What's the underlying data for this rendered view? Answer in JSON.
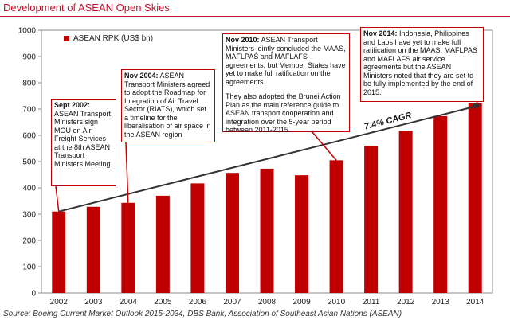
{
  "header": {
    "title": "Development of ASEAN Open Skies"
  },
  "source": "Source: Boeing Current Market Outlook 2015-2034, DBS Bank, Association of Southeast Asian Nations (ASEAN)",
  "colors": {
    "bar": "#c00000",
    "title": "#c8102e",
    "trend": "#333333"
  },
  "annotations": [
    {
      "head": "Sept 2002:",
      "body": "ASEAN Transport Ministers sign MOU on Air Freight Services at the 8th ASEAN Transport Ministers Meeting"
    },
    {
      "head": "Nov 2004:",
      "body": "ASEAN Transport Ministers agreed to adopt the Roadmap for Integration of Air Travel Sector (RIATS), which set a timeline for the liberalisation of air space in the ASEAN region"
    },
    {
      "head": "Nov 2010:",
      "body": "ASEAN Transport Ministers jointly concluded the MAAS, MAFLPAS and MAFLAFS agreements, but Member States have yet to make full ratification on the agreements.",
      "body2": "They also adopted the Brunei Action Plan as the main reference guide to ASEAN transport cooperation and integration over the 5-year period between 2011-2015."
    },
    {
      "head": "Nov 2014:",
      "body": "Indonesia, Philippines and Laos have yet to make full ratification on the MAAS, MAFLPAS and MAFLAFS air service agreements but the ASEAN Ministers noted that they are set to be fully implemented by the end of 2015."
    }
  ],
  "chart_data": {
    "type": "bar",
    "title": "Development of ASEAN Open Skies",
    "categories": [
      "2002",
      "2003",
      "2004",
      "2005",
      "2006",
      "2007",
      "2008",
      "2009",
      "2010",
      "2011",
      "2012",
      "2013",
      "2014"
    ],
    "series": [
      {
        "name": "ASEAN RPK (US$ bn)",
        "values": [
          310,
          328,
          343,
          370,
          417,
          457,
          473,
          448,
          505,
          560,
          617,
          673,
          722
        ]
      }
    ],
    "ylim": [
      0,
      1000
    ],
    "yticks": [
      0,
      100,
      200,
      300,
      400,
      500,
      600,
      700,
      800,
      900,
      1000
    ],
    "grid": false,
    "legend": "top-left",
    "trendline": {
      "label": "7.4% CAGR",
      "from": [
        "2002",
        310
      ],
      "to": [
        "2014",
        722
      ]
    }
  }
}
